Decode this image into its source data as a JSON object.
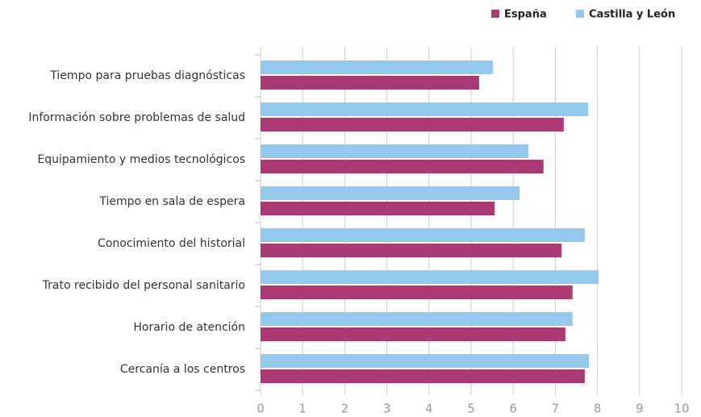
{
  "chart_data": {
    "type": "hbar",
    "categories": [
      "Tiempo para pruebas diagnósticas",
      "Información sobre problemas de salud",
      "Equipamiento y medios tecnológicos",
      "Tiempo en sala de espera",
      "Conocimiento del historial",
      "Trato recibido del personal sanitario",
      "Horario de atención",
      "Cercanía a los centros"
    ],
    "series": [
      {
        "name": "España",
        "color": "#ab3a74",
        "values": [
          5.19,
          7.2,
          6.72,
          5.56,
          7.15,
          7.41,
          7.24,
          7.7
        ]
      },
      {
        "name": "Castilla y León",
        "color": "#94c9ee",
        "values": [
          5.52,
          7.78,
          6.36,
          6.15,
          7.7,
          8.03,
          7.41,
          7.8
        ]
      }
    ],
    "xlim": [
      0,
      10
    ],
    "xticks": [
      0,
      1,
      2,
      3,
      4,
      5,
      6,
      7,
      8,
      9,
      10
    ],
    "grid": true,
    "legend": "top-right"
  }
}
